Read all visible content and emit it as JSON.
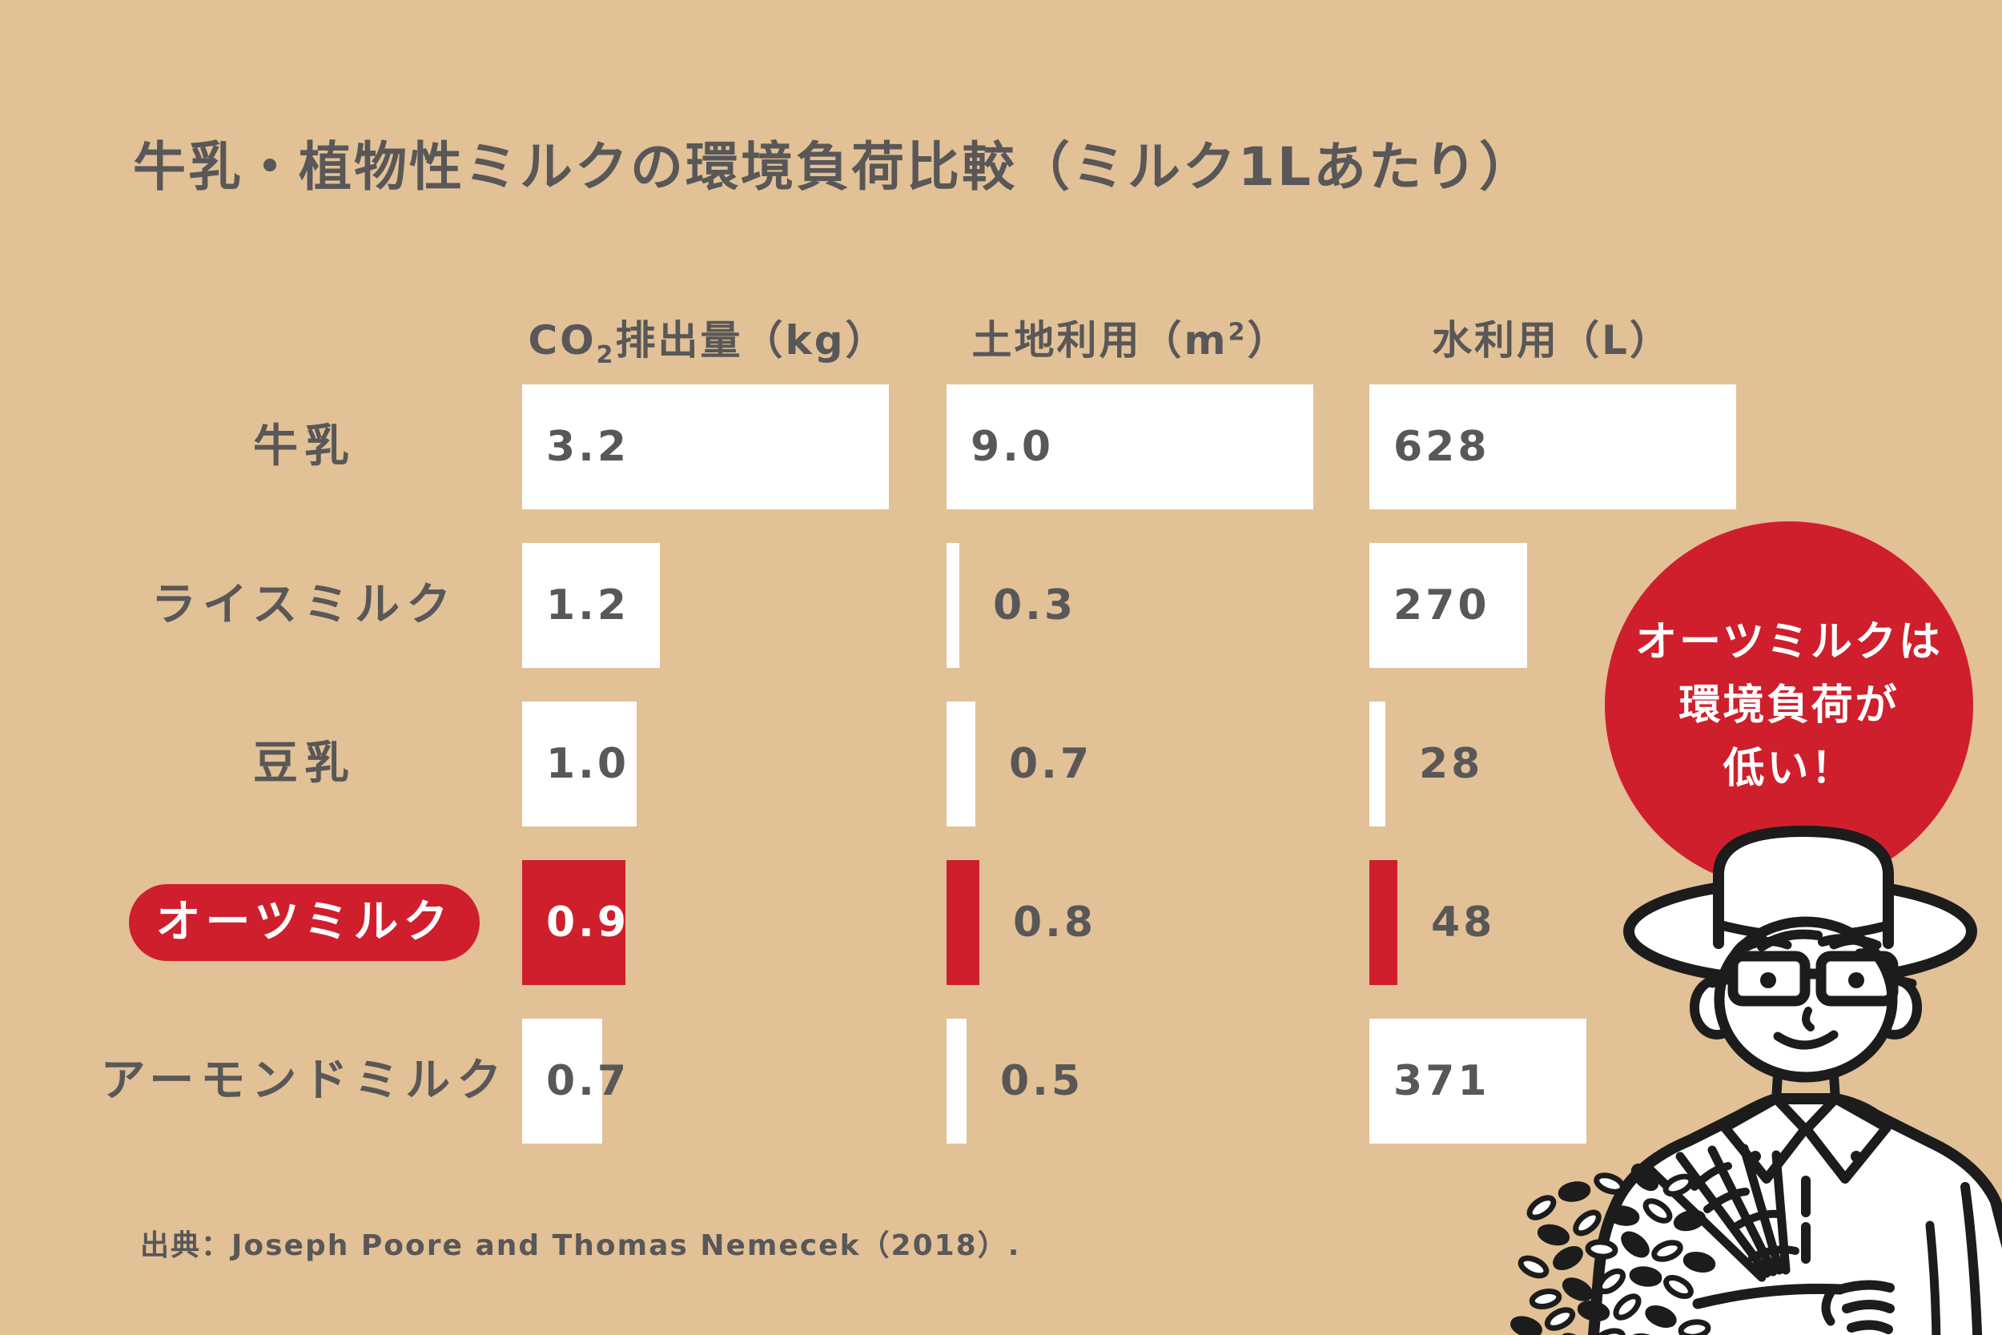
{
  "title": "牛乳・植物性ミルクの環境負荷比較（ミルク1Lあたり）",
  "source": "出典：Joseph Poore and Thomas Nemecek（2018）.",
  "callout": {
    "lines": [
      "オーツミルクは",
      "環境負荷が",
      "低い！"
    ]
  },
  "colors": {
    "background": "#e2c197",
    "accent_red": "#cf1f2c",
    "text_gray": "#595757",
    "bar_white": "#ffffff",
    "callout_text": "#ffffff",
    "illustration_line": "#1c1c1c"
  },
  "chart_data": {
    "type": "bar",
    "orientation": "horizontal",
    "title": "牛乳・植物性ミルクの環境負荷比較（ミルク1Lあたり）",
    "legend": "none",
    "grid": false,
    "columns": [
      {
        "header": [
          {
            "t": "CO"
          },
          {
            "sub": "2"
          },
          {
            "t": "排出量（kg）"
          }
        ],
        "max": 3.2
      },
      {
        "header": [
          {
            "t": "土地利用（m"
          },
          {
            "sup": "2"
          },
          {
            "t": "）"
          }
        ],
        "max": 9.0
      },
      {
        "header": [
          {
            "t": "水利用（L）"
          }
        ],
        "max": 628
      }
    ],
    "rows": [
      {
        "label": "牛乳",
        "highlight": false,
        "values": [
          3.2,
          9.0,
          628
        ],
        "display": [
          "3.2",
          "9.0",
          "628"
        ]
      },
      {
        "label": "ライスミルク",
        "highlight": false,
        "values": [
          1.2,
          0.3,
          270
        ],
        "display": [
          "1.2",
          "0.3",
          "270"
        ]
      },
      {
        "label": "豆乳",
        "highlight": false,
        "values": [
          1.0,
          0.7,
          28
        ],
        "display": [
          "1.0",
          "0.7",
          "28"
        ]
      },
      {
        "label": "オーツミルク",
        "highlight": true,
        "values": [
          0.9,
          0.8,
          48
        ],
        "display": [
          "0.9",
          "0.8",
          "48"
        ]
      },
      {
        "label": "アーモンドミルク",
        "highlight": false,
        "values": [
          0.7,
          0.5,
          371
        ],
        "display": [
          "0.7",
          "0.5",
          "371"
        ]
      }
    ]
  }
}
